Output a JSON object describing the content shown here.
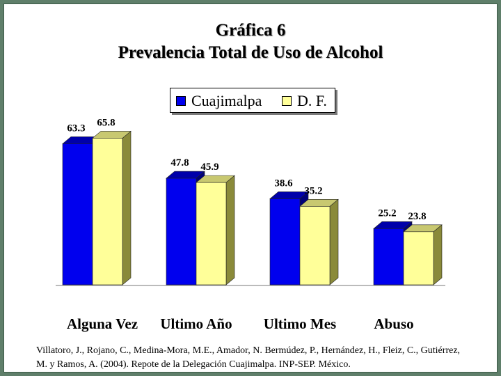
{
  "title": "Gráfica 6",
  "subtitle": "Prevalencia Total de Uso de Alcohol",
  "legend": [
    {
      "label": "Cuajimalpa",
      "color": "#0000ee"
    },
    {
      "label": "D. F.",
      "color": "#ffff99"
    }
  ],
  "chart_data": {
    "type": "bar",
    "title": "Gráfica 6",
    "subtitle": "Prevalencia Total de Uso de Alcohol",
    "categories": [
      "Alguna Vez",
      "Ultimo Año",
      "Ultimo Mes",
      "Abuso"
    ],
    "series": [
      {
        "name": "Cuajimalpa",
        "values": [
          63.3,
          47.8,
          38.6,
          25.2
        ],
        "labels": [
          "63.3",
          "47.8",
          "38.6",
          "25.2"
        ],
        "color": "#0000ee",
        "side_color": "#00007a",
        "top_color": "#0000aa"
      },
      {
        "name": "D. F.",
        "values": [
          65.8,
          45.9,
          35.2,
          23.8
        ],
        "labels": [
          "65.8",
          "45.9",
          "35.2",
          "23.8"
        ],
        "color": "#ffff99",
        "side_color": "#8a8a3a",
        "top_color": "#c8c870"
      }
    ],
    "ylim": [
      0,
      70
    ],
    "grid": false,
    "legend_position": "top-center",
    "style": "3d-bar"
  },
  "source": "Villatoro, J., Rojano, C., Medina-Mora, M.E., Amador, N. Bermúdez, P., Hernández, H., Fleiz, C., Gutiérrez, M. y Ramos, A. (2004). Repote de la Delegación Cuajimalpa. INP-SEP. México."
}
